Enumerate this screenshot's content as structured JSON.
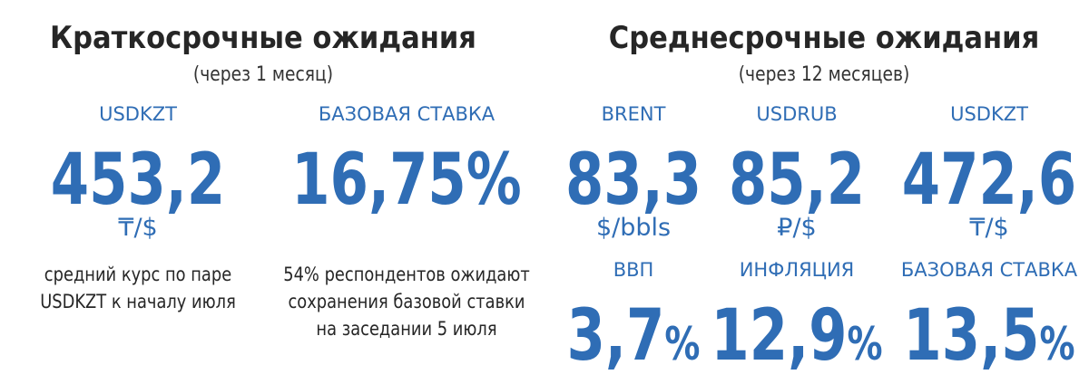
{
  "short_term": {
    "title": "Краткосрочные ожидания",
    "subtitle": "(через 1 месяц)",
    "items": [
      {
        "label": "USDKZT",
        "value": "453,2",
        "unit": "₸/$",
        "note": [
          "средний курс по паре",
          "USDKZT к началу июля"
        ]
      },
      {
        "label": "БАЗОВАЯ СТАВКА",
        "value": "16,75%",
        "note": [
          "54% респондентов ожидают",
          "сохранения базовой ставки",
          "на заседании 5 июля"
        ]
      }
    ]
  },
  "medium_term": {
    "title": "Среднесрочные ожидания",
    "subtitle": "(через 12 месяцев)",
    "items": [
      {
        "label": "BRENT",
        "value": "83,3",
        "unit": "$/bbls"
      },
      {
        "label": "USDRUB",
        "value": "85,2",
        "unit": "₽/$"
      },
      {
        "label": "USDKZT",
        "value": "472,6",
        "unit": "₸/$"
      },
      {
        "label": "ВВП",
        "value": "3,7",
        "suffix": "%"
      },
      {
        "label": "ИНФЛЯЦИЯ",
        "value": "12,9",
        "suffix": "%"
      },
      {
        "label": "БАЗОВАЯ СТАВКА",
        "value": "13,5",
        "suffix": "%"
      }
    ]
  }
}
